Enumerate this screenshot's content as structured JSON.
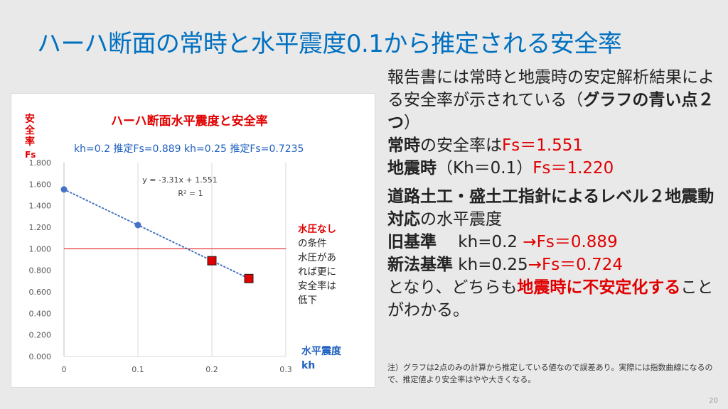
{
  "slide": {
    "title": "ハーハ断面の常時と水平震度0.1から推定される安全率",
    "page_number": "20"
  },
  "chart": {
    "title": "ハーハ断面水平震度と安全率",
    "y_label_1": "安全率",
    "y_label_2": "Fs",
    "kh_info": "kh=0.2 推定Fs=0.889  kh=0.25 推定Fs=0.7235",
    "note_red": "水圧なし",
    "note_lines": [
      "の条件",
      "水圧があ",
      "れば更に",
      "安全率は",
      "低下"
    ],
    "x_label_1": "水平震度",
    "x_label_2": "kh"
  },
  "chart_data": {
    "type": "scatter",
    "title": "ハーハ断面水平震度と安全率",
    "xlabel": "水平震度 kh",
    "ylabel": "安全率 Fs",
    "xlim": [
      0,
      0.3
    ],
    "ylim": [
      0,
      1.8
    ],
    "x_ticks": [
      "0",
      "0.1",
      "0.2",
      "0.3"
    ],
    "y_ticks": [
      "0.000",
      "0.200",
      "0.400",
      "0.600",
      "0.800",
      "1.000",
      "1.200",
      "1.400",
      "1.600",
      "1.800"
    ],
    "grid": "vertical",
    "series": [
      {
        "points": [
          [
            0,
            1.551
          ],
          [
            0.1,
            1.22
          ]
        ],
        "color": "#4472c4",
        "marker": "circle"
      },
      {
        "points": [
          [
            0.2,
            0.889
          ],
          [
            0.25,
            0.7235
          ]
        ],
        "color": "#e00000",
        "marker": "square"
      }
    ],
    "trendline": {
      "slope": -3.31,
      "intercept": 1.551,
      "equation": "y = -3.31x + 1.551",
      "r2": "R² = 1",
      "color": "#4472c4"
    },
    "reference_line": {
      "y": 1.0,
      "color": "#e00000"
    }
  },
  "text": {
    "p1_a": "報告書には常時と地震時の安定解析結果による安全率が示されている（",
    "p1_b": "グラフの青い点２つ",
    "p1_c": "）",
    "l1_a": "常時",
    "l1_b": "の安全率は",
    "l1_c": "Fs＝1.551",
    "l2_a": "地震時",
    "l2_b": "（Kh＝0.1）",
    "l2_c": "Fs＝1.220",
    "p2_a": "道路土工・盛土工指針によるレベル２地震動対応",
    "p2_b": "の水平震度",
    "l3_a": "旧基準",
    "l3_b": "　 kh=0.2 ",
    "l3_c": "→Fs＝0.889",
    "l4_a": "新法基準",
    "l4_b": " kh=0.25",
    "l4_c": "→Fs＝0.724",
    "p3_a": "となり、どちらも",
    "p3_b": "地震時に不安定化する",
    "p3_c": "ことがわかる。",
    "footnote": "注）グラフは2点のみの計算から推定している値なので誤差あり。実際には指数曲線になるので、推定値より安全率はやや大きくなる。"
  }
}
